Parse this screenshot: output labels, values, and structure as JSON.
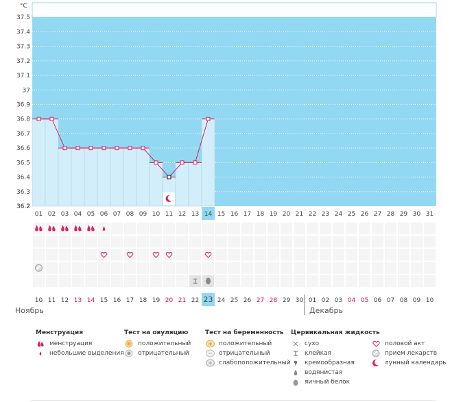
{
  "chart_data": {
    "type": "line",
    "unit_label": "°C",
    "y_ticks": [
      "37.5",
      "37.4",
      "37.3",
      "37.2",
      "37.1",
      "37",
      "36.9",
      "36.8",
      "36.7",
      "36.6",
      "36.5",
      "36.4",
      "36.3",
      "36.2"
    ],
    "ylim": [
      36.2,
      37.6
    ],
    "cycle_days": [
      "01",
      "02",
      "03",
      "04",
      "05",
      "06",
      "07",
      "08",
      "09",
      "10",
      "11",
      "12",
      "13",
      "14",
      "15",
      "16",
      "17",
      "18",
      "19",
      "20",
      "21",
      "22",
      "23",
      "24",
      "25",
      "26",
      "27",
      "28",
      "29",
      "30",
      "31"
    ],
    "temperatures": [
      36.8,
      36.8,
      36.6,
      36.6,
      36.6,
      36.6,
      36.6,
      36.6,
      36.6,
      36.5,
      36.4,
      36.5,
      36.5,
      36.8
    ],
    "highlight_cycle_day": "14",
    "dates": [
      "10",
      "11",
      "12",
      "13",
      "14",
      "15",
      "16",
      "17",
      "18",
      "19",
      "20",
      "21",
      "22",
      "23",
      "24",
      "25",
      "26",
      "27",
      "28",
      "29",
      "30",
      "01",
      "02",
      "03",
      "04",
      "05",
      "06",
      "07",
      "08",
      "09",
      "10"
    ],
    "weekend_indexes": [
      3,
      4,
      10,
      11,
      17,
      18,
      24,
      25
    ],
    "today_index": 13,
    "month_left": "Ноябрь",
    "month_right": "Декабрь",
    "month_divider_index": 21,
    "rows": {
      "menstruation": [
        "heavy",
        "heavy",
        "heavy",
        "heavy",
        "heavy",
        "light",
        "",
        "",
        "",
        "",
        "",
        "",
        "",
        ""
      ],
      "ovulation_test": [
        "",
        "",
        "",
        "",
        "",
        "",
        "",
        "",
        "",
        "",
        "",
        "",
        "",
        ""
      ],
      "intercourse": [
        "",
        "",
        "",
        "",
        "",
        "x",
        "",
        "x",
        "",
        "x",
        "x",
        "",
        "",
        "x"
      ],
      "medicine": [
        "x",
        "",
        "",
        "",
        "",
        "",
        "",
        "",
        "",
        "",
        "",
        "",
        "",
        ""
      ],
      "fluid": [
        "",
        "",
        "",
        "",
        "",
        "",
        "",
        "",
        "",
        "",
        "",
        "",
        "sticky",
        "eggwhite"
      ],
      "moon": [
        "",
        "",
        "",
        "",
        "",
        "",
        "",
        "",
        "",
        "",
        "x",
        "",
        "",
        ""
      ]
    }
  },
  "legend": {
    "menstruation": {
      "title": "Менструация",
      "items": [
        "менструация",
        "небольшие выделения"
      ]
    },
    "ovulation": {
      "title": "Тест на овуляцию",
      "items": [
        "положительный",
        "отрицательный"
      ]
    },
    "pregnancy": {
      "title": "Тест на беременность",
      "items": [
        "положительный",
        "отрицательный",
        "слабоположительный"
      ]
    },
    "fluid": {
      "title": "Цервикальная жидкость",
      "items": [
        "сухо",
        "клейкая",
        "кремообразная",
        "водянистая",
        "яичный белок"
      ]
    },
    "other": {
      "items": [
        "половой акт",
        "прием лекарств",
        "лунный календарь"
      ]
    }
  },
  "colors": {
    "plot_bg": "#93d8f3",
    "bar_fill": "#d2eefb",
    "line": "#d9235c",
    "weekend": "#cc1a5a",
    "today": "#93d8f3"
  }
}
